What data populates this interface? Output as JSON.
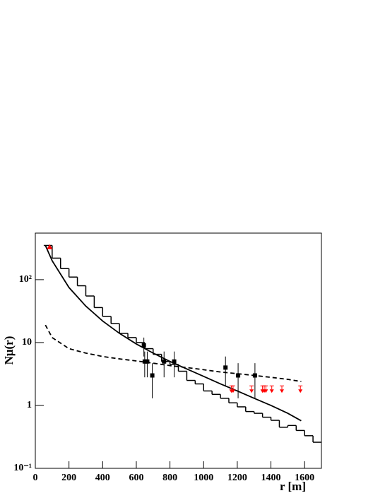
{
  "chart_data": {
    "type": "line",
    "x_label": "r [m]",
    "y_label": "Nμ(r)",
    "xlim": [
      0,
      1700
    ],
    "xticks": [
      0,
      200,
      400,
      600,
      800,
      1000,
      1200,
      1400,
      1600
    ],
    "ylim": [
      0.1,
      550
    ],
    "log_y": true,
    "yticks": [
      {
        "value": 0.1,
        "label": "10⁻¹"
      },
      1,
      10,
      {
        "value": 100,
        "label": "10²"
      }
    ],
    "histogram": {
      "color": "#000000",
      "bins": [
        50,
        100,
        150,
        200,
        250,
        300,
        350,
        400,
        450,
        500,
        550,
        600,
        650,
        700,
        750,
        800,
        850,
        900,
        950,
        1000,
        1050,
        1100,
        1150,
        1200,
        1250,
        1300,
        1350,
        1400,
        1450,
        1500,
        1550,
        1600,
        1650,
        1700
      ],
      "counts": [
        350,
        220,
        150,
        110,
        80,
        55,
        36,
        26,
        20,
        14,
        12,
        10,
        8,
        6.5,
        5,
        4.5,
        3.5,
        2.5,
        2.2,
        1.7,
        1.5,
        1.3,
        1.1,
        0.95,
        0.8,
        0.75,
        0.65,
        0.58,
        0.45,
        0.48,
        0.4,
        0.33,
        0.26
      ]
    },
    "curves": [
      {
        "color": "#000000",
        "dashed": false,
        "x": [
          60,
          100,
          200,
          300,
          400,
          500,
          600,
          700,
          800,
          900,
          1000,
          1100,
          1200,
          1300,
          1400,
          1500,
          1580
        ],
        "values": [
          350,
          200,
          75,
          38,
          22,
          14,
          9.5,
          6.8,
          5,
          3.8,
          2.9,
          2.2,
          1.7,
          1.3,
          1,
          0.75,
          0.57
        ]
      },
      {
        "color": "#000000",
        "dashed": true,
        "x": [
          60,
          100,
          200,
          300,
          400,
          500,
          600,
          700,
          800,
          900,
          1000,
          1100,
          1200,
          1300,
          1400,
          1500,
          1580
        ],
        "values": [
          19,
          12,
          8,
          6.8,
          6,
          5.5,
          5.1,
          4.7,
          4.3,
          4,
          3.7,
          3.4,
          3.2,
          3,
          2.8,
          2.6,
          2.4
        ]
      }
    ],
    "points": {
      "color": "#000000",
      "x": [
        645,
        650,
        665,
        695,
        765,
        825,
        1130,
        1205,
        1305
      ],
      "values": [
        9,
        5,
        5,
        3,
        5,
        5,
        4,
        3,
        3
      ],
      "errors": [
        3,
        2.2,
        2.2,
        1.7,
        2.2,
        2.2,
        2,
        1.7,
        1.7
      ]
    },
    "upper_limits": {
      "color": "#ff0000",
      "x": [
        1165,
        1175,
        1285,
        1350,
        1360,
        1370,
        1405,
        1465,
        1575
      ],
      "values": [
        1.8,
        1.8,
        1.8,
        1.8,
        1.8,
        1.8,
        1.8,
        1.8,
        1.8
      ]
    },
    "triangle": {
      "color": "#ff0000",
      "x": [
        85
      ],
      "values": [
        330
      ]
    }
  }
}
